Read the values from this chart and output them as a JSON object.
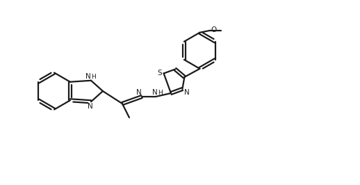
{
  "bg_color": "#ffffff",
  "line_color": "#1a1a1a",
  "line_width": 1.6,
  "figsize": [
    5.18,
    2.66
  ],
  "dpi": 100,
  "xlim": [
    0.0,
    5.18
  ],
  "ylim": [
    0.0,
    2.66
  ]
}
